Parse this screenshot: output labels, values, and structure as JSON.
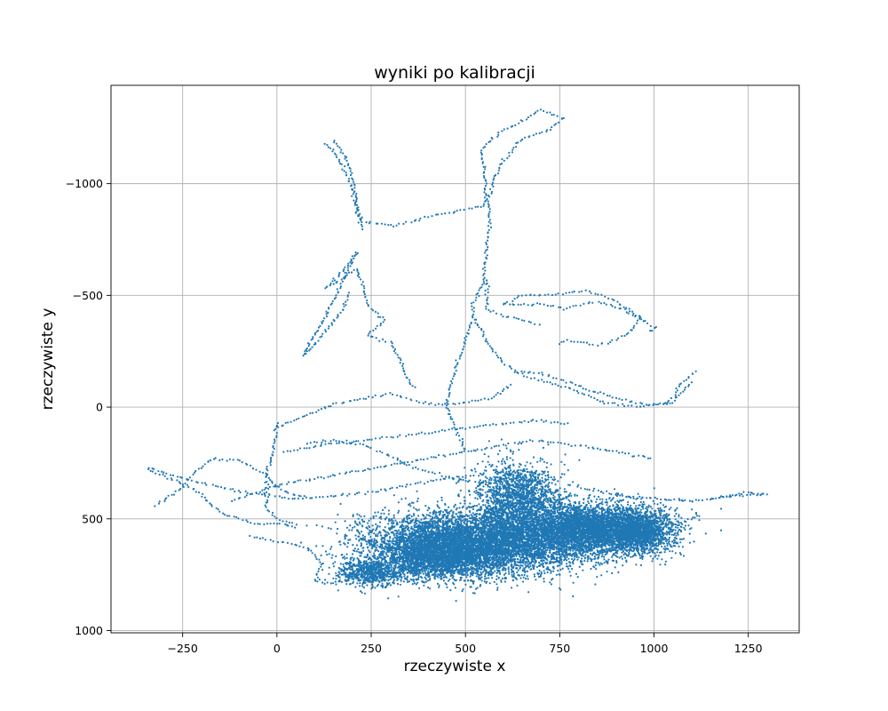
{
  "chart_data": {
    "type": "scatter",
    "title": "wyniki po kalibracji",
    "xlabel": "rzeczywiste x",
    "ylabel": "rzeczywiste y",
    "xlim": [
      -440,
      1385
    ],
    "ylim": [
      -1440,
      1010
    ],
    "y_inverted": true,
    "grid": true,
    "marker_color": "#1f77b4",
    "x_ticks": [
      {
        "value": -250,
        "label": "−250"
      },
      {
        "value": 0,
        "label": "0"
      },
      {
        "value": 250,
        "label": "250"
      },
      {
        "value": 500,
        "label": "500"
      },
      {
        "value": 750,
        "label": "750"
      },
      {
        "value": 1000,
        "label": "1000"
      },
      {
        "value": 1250,
        "label": "1250"
      }
    ],
    "y_ticks": [
      {
        "value": -1000,
        "label": "−1000"
      },
      {
        "value": -500,
        "label": "−500"
      },
      {
        "value": 0,
        "label": "0"
      },
      {
        "value": 500,
        "label": "500"
      },
      {
        "value": 1000,
        "label": "1000"
      }
    ],
    "trajectories": [
      {
        "points": [
          [
            150,
            -1190
          ],
          [
            185,
            -1110
          ],
          [
            205,
            -1000
          ],
          [
            210,
            -900
          ],
          [
            225,
            -830
          ],
          [
            310,
            -810
          ],
          [
            420,
            -860
          ],
          [
            550,
            -900
          ],
          [
            555,
            -1000
          ],
          [
            540,
            -1150
          ],
          [
            590,
            -1230
          ],
          [
            640,
            -1270
          ],
          [
            700,
            -1330
          ],
          [
            760,
            -1290
          ],
          [
            720,
            -1240
          ],
          [
            650,
            -1200
          ],
          [
            600,
            -1100
          ],
          [
            580,
            -1040
          ],
          [
            560,
            -930
          ],
          [
            565,
            -820
          ],
          [
            555,
            -700
          ],
          [
            550,
            -590
          ],
          [
            560,
            -540
          ],
          [
            555,
            -440
          ],
          [
            600,
            -410
          ],
          [
            650,
            -390
          ],
          [
            700,
            -360
          ]
        ]
      },
      {
        "points": [
          [
            130,
            -1180
          ],
          [
            165,
            -1110
          ],
          [
            200,
            -980
          ],
          [
            215,
            -860
          ],
          [
            230,
            -790
          ]
        ]
      },
      {
        "points": [
          [
            215,
            -690
          ],
          [
            190,
            -640
          ],
          [
            130,
            -530
          ],
          [
            170,
            -570
          ],
          [
            210,
            -620
          ],
          [
            225,
            -560
          ],
          [
            240,
            -460
          ],
          [
            270,
            -410
          ],
          [
            285,
            -390
          ],
          [
            240,
            -320
          ],
          [
            300,
            -290
          ],
          [
            330,
            -200
          ],
          [
            350,
            -120
          ],
          [
            370,
            -80
          ]
        ]
      },
      {
        "points": [
          [
            210,
            -690
          ],
          [
            180,
            -580
          ],
          [
            120,
            -380
          ],
          [
            70,
            -230
          ],
          [
            110,
            -300
          ],
          [
            140,
            -360
          ],
          [
            175,
            -430
          ],
          [
            190,
            -520
          ]
        ]
      },
      {
        "points": [
          [
            555,
            -570
          ],
          [
            520,
            -470
          ],
          [
            520,
            -400
          ],
          [
            500,
            -300
          ],
          [
            480,
            -200
          ],
          [
            460,
            -100
          ],
          [
            450,
            0
          ],
          [
            470,
            80
          ],
          [
            500,
            200
          ]
        ]
      },
      {
        "points": [
          [
            605,
            -460
          ],
          [
            700,
            -460
          ],
          [
            760,
            -440
          ],
          [
            840,
            -470
          ],
          [
            900,
            -450
          ],
          [
            960,
            -400
          ],
          [
            940,
            -340
          ],
          [
            900,
            -300
          ],
          [
            850,
            -280
          ],
          [
            770,
            -300
          ],
          [
            740,
            -280
          ]
        ]
      },
      {
        "points": [
          [
            600,
            -460
          ],
          [
            650,
            -500
          ],
          [
            710,
            -500
          ],
          [
            820,
            -520
          ],
          [
            880,
            -490
          ],
          [
            940,
            -430
          ],
          [
            980,
            -380
          ],
          [
            1000,
            -360
          ],
          [
            990,
            -330
          ]
        ]
      },
      {
        "points": [
          [
            1110,
            -160
          ],
          [
            1070,
            -100
          ],
          [
            1040,
            -20
          ],
          [
            960,
            0
          ],
          [
            870,
            -20
          ],
          [
            780,
            -80
          ],
          [
            700,
            -120
          ],
          [
            640,
            -150
          ],
          [
            600,
            -200
          ],
          [
            560,
            -280
          ],
          [
            540,
            -350
          ],
          [
            520,
            -400
          ]
        ]
      },
      {
        "points": [
          [
            640,
            -160
          ],
          [
            700,
            -150
          ],
          [
            760,
            -120
          ],
          [
            820,
            -80
          ],
          [
            900,
            -40
          ],
          [
            980,
            -10
          ],
          [
            1050,
            -20
          ],
          [
            1100,
            -120
          ]
        ]
      },
      {
        "points": [
          [
            620,
            -100
          ],
          [
            570,
            -40
          ],
          [
            500,
            -20
          ],
          [
            420,
            -10
          ],
          [
            360,
            -30
          ],
          [
            300,
            -60
          ],
          [
            240,
            -40
          ],
          [
            160,
            -20
          ],
          [
            60,
            50
          ],
          [
            20,
            70
          ],
          [
            0,
            100
          ]
        ]
      },
      {
        "points": [
          [
            0,
            70
          ],
          [
            -10,
            200
          ],
          [
            -30,
            320
          ],
          [
            -30,
            450
          ],
          [
            0,
            500
          ],
          [
            60,
            530
          ]
        ]
      },
      {
        "points": [
          [
            -340,
            280
          ],
          [
            -300,
            310
          ],
          [
            -270,
            330
          ],
          [
            -240,
            350
          ],
          [
            -200,
            390
          ],
          [
            -180,
            430
          ],
          [
            -140,
            480
          ],
          [
            -100,
            500
          ],
          [
            -60,
            520
          ],
          [
            0,
            520
          ],
          [
            60,
            540
          ]
        ]
      },
      {
        "points": [
          [
            -320,
            440
          ],
          [
            -270,
            390
          ],
          [
            -220,
            300
          ],
          [
            -170,
            230
          ],
          [
            -100,
            240
          ],
          [
            -30,
            300
          ],
          [
            10,
            370
          ],
          [
            40,
            390
          ],
          [
            80,
            400
          ]
        ]
      },
      {
        "points": [
          [
            -340,
            270
          ],
          [
            -250,
            320
          ],
          [
            -150,
            360
          ],
          [
            -50,
            390
          ],
          [
            50,
            410
          ],
          [
            150,
            400
          ],
          [
            250,
            380
          ],
          [
            350,
            350
          ],
          [
            450,
            320
          ],
          [
            550,
            300
          ]
        ]
      },
      {
        "points": [
          [
            -120,
            420
          ],
          [
            0,
            350
          ],
          [
            100,
            320
          ],
          [
            200,
            290
          ],
          [
            300,
            260
          ],
          [
            400,
            230
          ],
          [
            500,
            200
          ],
          [
            600,
            170
          ],
          [
            700,
            150
          ],
          [
            800,
            170
          ],
          [
            900,
            200
          ],
          [
            1000,
            230
          ]
        ]
      },
      {
        "points": [
          [
            20,
            200
          ],
          [
            120,
            170
          ],
          [
            220,
            150
          ],
          [
            320,
            130
          ],
          [
            420,
            110
          ],
          [
            520,
            90
          ],
          [
            620,
            70
          ],
          [
            700,
            60
          ],
          [
            780,
            80
          ]
        ]
      },
      {
        "points": [
          [
            80,
            160
          ],
          [
            150,
            150
          ],
          [
            230,
            170
          ],
          [
            300,
            220
          ],
          [
            360,
            270
          ],
          [
            430,
            300
          ],
          [
            500,
            330
          ],
          [
            560,
            350
          ]
        ]
      },
      {
        "points": [
          [
            800,
            360
          ],
          [
            900,
            390
          ],
          [
            1000,
            410
          ],
          [
            1100,
            420
          ],
          [
            1200,
            400
          ],
          [
            1300,
            390
          ],
          [
            1250,
            380
          ],
          [
            1150,
            410
          ]
        ]
      },
      {
        "points": [
          [
            700,
            600
          ],
          [
            850,
            580
          ],
          [
            1000,
            560
          ],
          [
            1100,
            500
          ],
          [
            1120,
            480
          ]
        ]
      },
      {
        "points": [
          [
            380,
            690
          ],
          [
            300,
            620
          ],
          [
            250,
            560
          ],
          [
            220,
            520
          ],
          [
            200,
            540
          ],
          [
            250,
            600
          ]
        ]
      },
      {
        "points": [
          [
            -70,
            580
          ],
          [
            0,
            600
          ],
          [
            80,
            630
          ],
          [
            120,
            700
          ],
          [
            100,
            780
          ],
          [
            150,
            790
          ],
          [
            200,
            770
          ]
        ]
      }
    ],
    "clusters": [
      {
        "center": [
          560,
          600
        ],
        "spread": [
          300,
          140
        ],
        "count": 6000
      },
      {
        "center": [
          840,
          540
        ],
        "spread": [
          180,
          110
        ],
        "count": 3500
      },
      {
        "center": [
          430,
          660
        ],
        "spread": [
          170,
          110
        ],
        "count": 2600
      },
      {
        "center": [
          640,
          400
        ],
        "spread": [
          110,
          160
        ],
        "count": 1600
      },
      {
        "center": [
          250,
          740
        ],
        "spread": [
          90,
          60
        ],
        "count": 700
      },
      {
        "center": [
          960,
          560
        ],
        "spread": [
          90,
          90
        ],
        "count": 1200
      }
    ]
  }
}
